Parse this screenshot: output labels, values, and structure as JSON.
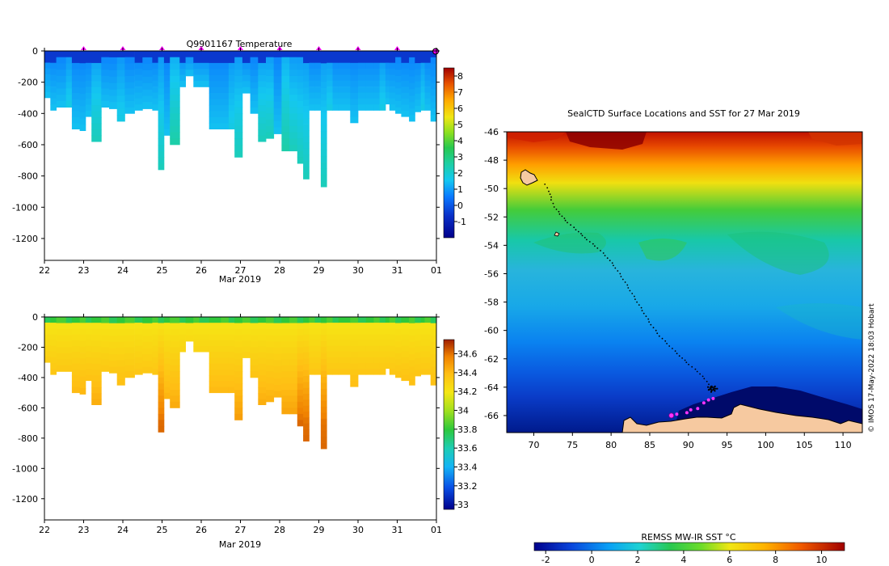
{
  "chart_data": [
    {
      "type": "heatmap",
      "title": "Q9901167  Temperature",
      "xlabel": "Mar 2019",
      "ylabel": "",
      "x_tick_labels": [
        "22",
        "23",
        "24",
        "25",
        "26",
        "27",
        "28",
        "29",
        "30",
        "31",
        "01"
      ],
      "y_ticks": [
        0,
        -200,
        -400,
        -600,
        -800,
        -1000,
        -1200
      ],
      "ylim": [
        -1340,
        0
      ],
      "colorbar": {
        "min": -2,
        "max": 8.5,
        "ticks": [
          -1,
          0,
          1,
          2,
          3,
          4,
          5,
          6,
          7,
          8
        ]
      },
      "profile_days": [
        22.0,
        22.15,
        22.3,
        22.55,
        22.7,
        22.9,
        23.05,
        23.2,
        23.45,
        23.65,
        23.85,
        24.05,
        24.3,
        24.5,
        24.75,
        24.9,
        25.05,
        25.2,
        25.45,
        25.6,
        25.8,
        25.95,
        26.2,
        26.5,
        26.7,
        26.85,
        27.05,
        27.25,
        27.45,
        27.65,
        27.85,
        28.05,
        28.25,
        28.45,
        28.6,
        28.75,
        28.9,
        29.05,
        29.2,
        29.35,
        29.5,
        29.8,
        30.0,
        30.2,
        30.4,
        30.55,
        30.7,
        30.8,
        30.95,
        31.1,
        31.3,
        31.45,
        31.6,
        31.7,
        31.85,
        32.0
      ],
      "max_depths": [
        300,
        380,
        360,
        360,
        500,
        510,
        420,
        580,
        360,
        370,
        450,
        400,
        380,
        370,
        380,
        760,
        540,
        600,
        230,
        160,
        230,
        230,
        500,
        500,
        500,
        680,
        270,
        400,
        580,
        560,
        530,
        640,
        640,
        720,
        820,
        380,
        380,
        870,
        380,
        380,
        380,
        460,
        380,
        380,
        380,
        380,
        340,
        380,
        400,
        420,
        450,
        390,
        380,
        380,
        450,
        450
      ],
      "markers": {
        "type": "profile-position",
        "color": "#ff00ff"
      }
    },
    {
      "type": "heatmap",
      "title": "",
      "xlabel": "Mar 2019",
      "ylabel": "",
      "x_tick_labels": [
        "22",
        "23",
        "24",
        "25",
        "26",
        "27",
        "28",
        "29",
        "30",
        "31",
        "01"
      ],
      "y_ticks": [
        0,
        -200,
        -400,
        -600,
        -800,
        -1000,
        -1200
      ],
      "ylim": [
        -1340,
        0
      ],
      "colorbar": {
        "min": 32.95,
        "max": 34.75,
        "ticks": [
          33,
          33.2,
          33.4,
          33.6,
          33.8,
          34,
          34.2,
          34.4,
          34.6
        ],
        "tick_labels": [
          "33",
          "33.2",
          "33.4",
          "33.6",
          "33.8",
          "34",
          "34.2",
          "34.4",
          "34.6"
        ]
      }
    },
    {
      "type": "heatmap",
      "title": "SealCTD Surface Locations and SST for 27 Mar 2019",
      "xlabel": "",
      "ylabel": "",
      "x_ticks": [
        70,
        75,
        80,
        85,
        90,
        95,
        100,
        105,
        110
      ],
      "y_ticks": [
        -46,
        -48,
        -50,
        -52,
        -54,
        -56,
        -58,
        -60,
        -62,
        -64,
        -66
      ],
      "xlim": [
        66.5,
        112.5
      ],
      "ylim": [
        -67.2,
        -46
      ],
      "colorbar": {
        "label": "REMSS MW-IR SST °C",
        "min": -2.5,
        "max": 11,
        "ticks": [
          -2,
          0,
          2,
          4,
          6,
          8,
          10
        ]
      },
      "track_lonlat": [
        [
          71.5,
          -49.7
        ],
        [
          72,
          -50.2
        ],
        [
          72.3,
          -50.8
        ],
        [
          72.7,
          -51.3
        ],
        [
          73.4,
          -51.8
        ],
        [
          74.4,
          -52.4
        ],
        [
          75.5,
          -52.9
        ],
        [
          76.9,
          -53.6
        ],
        [
          78.3,
          -54.2
        ],
        [
          79.6,
          -54.9
        ],
        [
          80.6,
          -55.6
        ],
        [
          81.6,
          -56.4
        ],
        [
          82.5,
          -57.2
        ],
        [
          83.4,
          -58
        ],
        [
          84.3,
          -58.8
        ],
        [
          85.2,
          -59.6
        ],
        [
          86.3,
          -60.4
        ],
        [
          87.6,
          -61.1
        ],
        [
          88.9,
          -61.8
        ],
        [
          90.1,
          -62.4
        ],
        [
          91.2,
          -62.9
        ],
        [
          92.1,
          -63.4
        ],
        [
          92.7,
          -63.8
        ],
        [
          93.1,
          -64.1
        ]
      ],
      "recent_positions_lonlat": [
        [
          87.8,
          -66.0
        ],
        [
          88.5,
          -65.9
        ],
        [
          89.8,
          -65.8
        ],
        [
          90.3,
          -65.6
        ],
        [
          91.2,
          -65.5
        ],
        [
          92,
          -65.1
        ],
        [
          92.6,
          -64.9
        ],
        [
          93.2,
          -64.8
        ]
      ],
      "credit": "© IMOS 17-May-2022 18:03 Hobart"
    }
  ]
}
